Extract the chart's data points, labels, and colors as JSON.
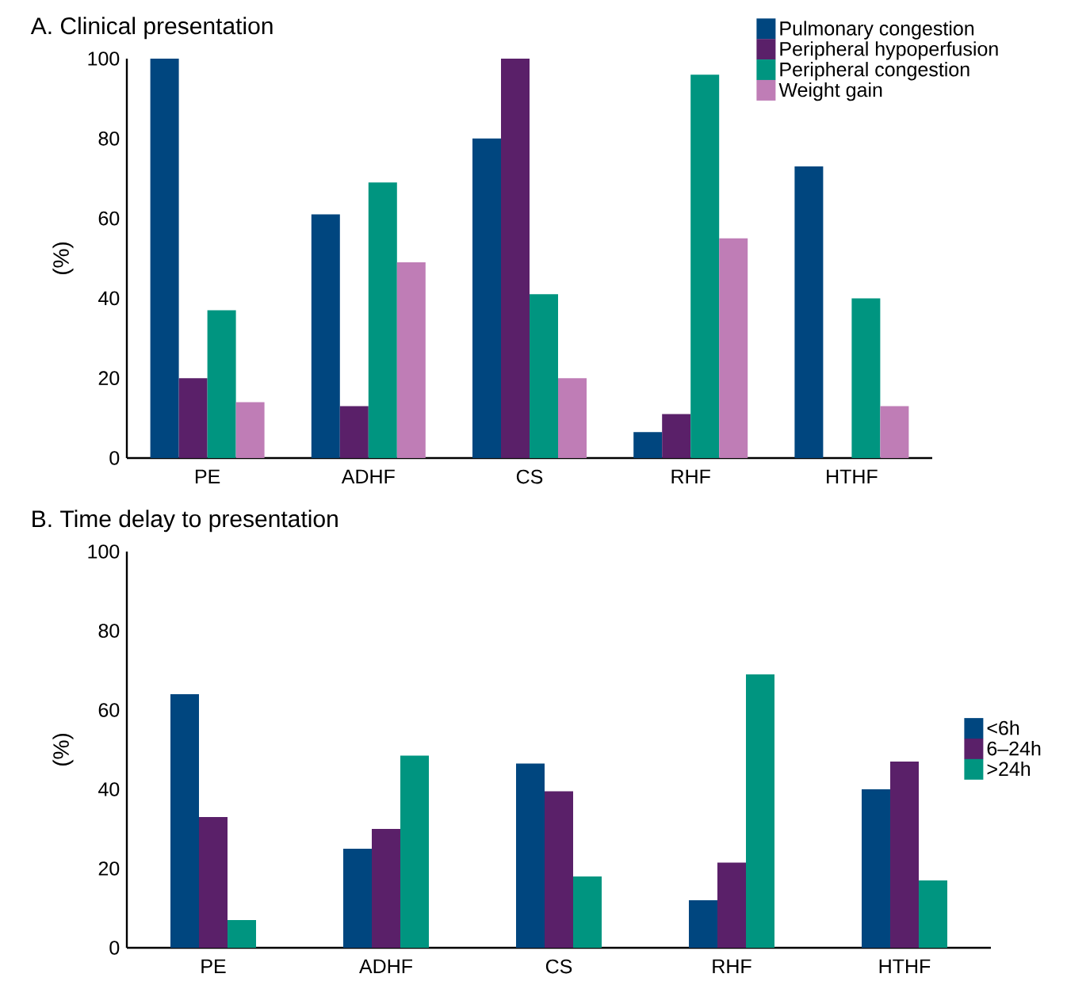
{
  "chart_data": [
    {
      "type": "bar",
      "title": "A. Clinical presentation",
      "ylabel": "(%)",
      "categories": [
        "PE",
        "ADHF",
        "CS",
        "RHF",
        "HTHF"
      ],
      "series": [
        {
          "name": "Pulmonary congestion",
          "color": "#00467f",
          "values": [
            100,
            61,
            80,
            6.5,
            73
          ]
        },
        {
          "name": "Peripheral hypoperfusion",
          "color": "#5a2069",
          "values": [
            20,
            13,
            100,
            11,
            null
          ]
        },
        {
          "name": "Peripheral  congestion",
          "color": "#009580",
          "values": [
            37,
            69,
            41,
            96,
            40
          ]
        },
        {
          "name": "Weight gain",
          "color": "#bf7db6",
          "values": [
            14,
            49,
            20,
            55,
            13
          ]
        }
      ],
      "ylim": [
        0,
        100
      ],
      "yticks": [
        0,
        20,
        40,
        60,
        80,
        100
      ],
      "grid": false,
      "legend": "top right"
    },
    {
      "type": "bar",
      "title": "B. Time delay to presentation",
      "ylabel": "(%)",
      "categories": [
        "PE",
        "ADHF",
        "CS",
        "RHF",
        "HTHF"
      ],
      "series": [
        {
          "name": "<6h",
          "color": "#00467f",
          "values": [
            64,
            25,
            46.5,
            12,
            40
          ]
        },
        {
          "name": "6–24h",
          "color": "#5a2069",
          "values": [
            33,
            30,
            39.5,
            21.5,
            47
          ]
        },
        {
          "name": ">24h",
          "color": "#009580",
          "values": [
            7,
            48.5,
            18,
            69,
            17
          ]
        }
      ],
      "ylim": [
        0,
        100
      ],
      "yticks": [
        0,
        20,
        40,
        60,
        80,
        100
      ],
      "grid": false,
      "legend": "right"
    }
  ]
}
